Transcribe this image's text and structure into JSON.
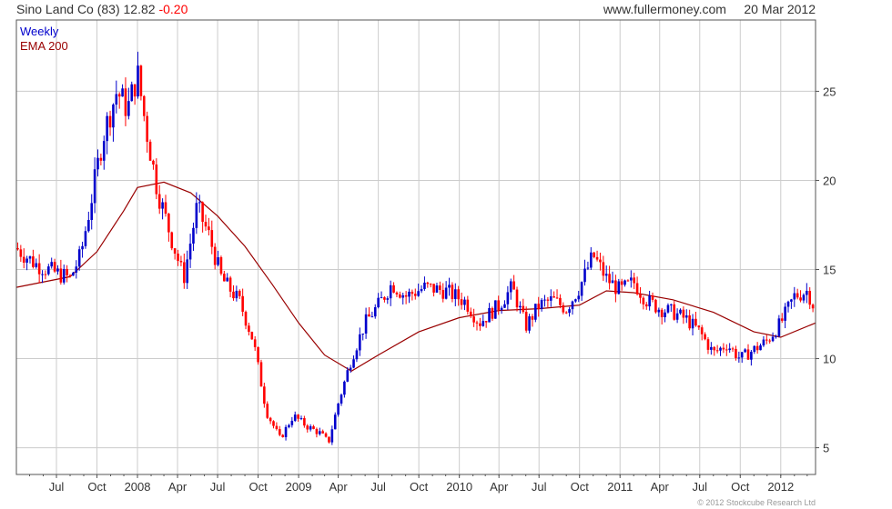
{
  "header": {
    "title": "Sino Land Co (83) 12.82",
    "change": "-0.20",
    "source": "www.fullermoney.com",
    "date": "20 Mar 2012"
  },
  "footer": {
    "copyright": "© 2012 Stockcube Research Ltd"
  },
  "colors": {
    "up": "#0000cc",
    "down": "#ff0000",
    "ema": "#990000",
    "grid": "#cccccc"
  },
  "chart_data": {
    "type": "candlestick",
    "legend": [
      {
        "label": "Weekly",
        "color": "#0000cc"
      },
      {
        "label": "EMA 200",
        "color": "#990000"
      }
    ],
    "x_ticks": [
      "Jul",
      "Oct",
      "2008",
      "Apr",
      "Jul",
      "Oct",
      "2009",
      "Apr",
      "Jul",
      "Oct",
      "2010",
      "Apr",
      "Jul",
      "Oct",
      "2011",
      "Apr",
      "Jul",
      "Oct",
      "2012"
    ],
    "y_ticks": [
      5,
      10,
      15,
      20,
      25
    ],
    "ylim": [
      3.5,
      29
    ],
    "grid": true,
    "x_range": [
      "2007-04-01",
      "2012-03-20"
    ],
    "last_close": 12.82,
    "change": -0.2,
    "anchors": [
      [
        "2007-04-01",
        16.2
      ],
      [
        "2007-05-15",
        15.3
      ],
      [
        "2007-07-01",
        14.8
      ],
      [
        "2007-08-01",
        14.5
      ],
      [
        "2007-08-25",
        15.8
      ],
      [
        "2007-09-15",
        18.5
      ],
      [
        "2007-10-15",
        22.5
      ],
      [
        "2007-11-15",
        25.0
      ],
      [
        "2007-12-10",
        24.0
      ],
      [
        "2008-01-01",
        26.0
      ],
      [
        "2008-01-20",
        23.0
      ],
      [
        "2008-02-15",
        19.5
      ],
      [
        "2008-03-15",
        17.0
      ],
      [
        "2008-04-15",
        14.5
      ],
      [
        "2008-05-15",
        18.5
      ],
      [
        "2008-06-10",
        17.0
      ],
      [
        "2008-07-10",
        14.5
      ],
      [
        "2008-08-20",
        13.2
      ],
      [
        "2008-09-20",
        11.0
      ],
      [
        "2008-10-20",
        7.0
      ],
      [
        "2008-11-20",
        5.5
      ],
      [
        "2008-12-20",
        6.8
      ],
      [
        "2009-01-20",
        6.2
      ],
      [
        "2009-02-20",
        5.8
      ],
      [
        "2009-03-10",
        5.3
      ],
      [
        "2009-04-01",
        7.5
      ],
      [
        "2009-05-01",
        10.0
      ],
      [
        "2009-06-01",
        12.0
      ],
      [
        "2009-07-01",
        13.0
      ],
      [
        "2009-08-01",
        14.2
      ],
      [
        "2009-09-01",
        13.5
      ],
      [
        "2009-10-15",
        14.0
      ],
      [
        "2009-12-01",
        13.8
      ],
      [
        "2010-01-15",
        13.2
      ],
      [
        "2010-02-15",
        12.0
      ],
      [
        "2010-04-01",
        13.0
      ],
      [
        "2010-05-01",
        14.0
      ],
      [
        "2010-06-01",
        11.8
      ],
      [
        "2010-07-01",
        13.0
      ],
      [
        "2010-08-01",
        13.3
      ],
      [
        "2010-09-01",
        12.8
      ],
      [
        "2010-10-01",
        14.0
      ],
      [
        "2010-11-01",
        15.8
      ],
      [
        "2010-12-01",
        14.5
      ],
      [
        "2011-01-01",
        13.8
      ],
      [
        "2011-02-01",
        14.3
      ],
      [
        "2011-03-01",
        13.3
      ],
      [
        "2011-04-01",
        12.8
      ],
      [
        "2011-05-01",
        12.6
      ],
      [
        "2011-06-01",
        12.2
      ],
      [
        "2011-07-01",
        11.5
      ],
      [
        "2011-08-01",
        10.3
      ],
      [
        "2011-09-01",
        10.8
      ],
      [
        "2011-10-01",
        10.0
      ],
      [
        "2011-11-01",
        10.5
      ],
      [
        "2011-12-01",
        11.0
      ],
      [
        "2012-01-01",
        12.0
      ],
      [
        "2012-02-01",
        13.5
      ],
      [
        "2012-03-01",
        13.8
      ],
      [
        "2012-03-20",
        12.82
      ]
    ],
    "ema_200": [
      [
        "2007-04-01",
        14.0
      ],
      [
        "2007-08-01",
        14.6
      ],
      [
        "2007-10-01",
        16.0
      ],
      [
        "2007-12-01",
        18.3
      ],
      [
        "2008-01-01",
        19.6
      ],
      [
        "2008-03-01",
        19.9
      ],
      [
        "2008-05-01",
        19.3
      ],
      [
        "2008-07-01",
        18.0
      ],
      [
        "2008-09-01",
        16.3
      ],
      [
        "2008-11-01",
        14.2
      ],
      [
        "2009-01-01",
        12.0
      ],
      [
        "2009-03-01",
        10.2
      ],
      [
        "2009-05-01",
        9.3
      ],
      [
        "2009-07-01",
        10.2
      ],
      [
        "2009-10-01",
        11.5
      ],
      [
        "2010-01-01",
        12.3
      ],
      [
        "2010-04-01",
        12.7
      ],
      [
        "2010-07-01",
        12.8
      ],
      [
        "2010-10-01",
        13.0
      ],
      [
        "2010-12-01",
        13.8
      ],
      [
        "2011-02-01",
        13.7
      ],
      [
        "2011-05-01",
        13.3
      ],
      [
        "2011-08-01",
        12.6
      ],
      [
        "2011-11-01",
        11.5
      ],
      [
        "2012-01-01",
        11.2
      ],
      [
        "2012-03-20",
        12.0
      ]
    ]
  }
}
